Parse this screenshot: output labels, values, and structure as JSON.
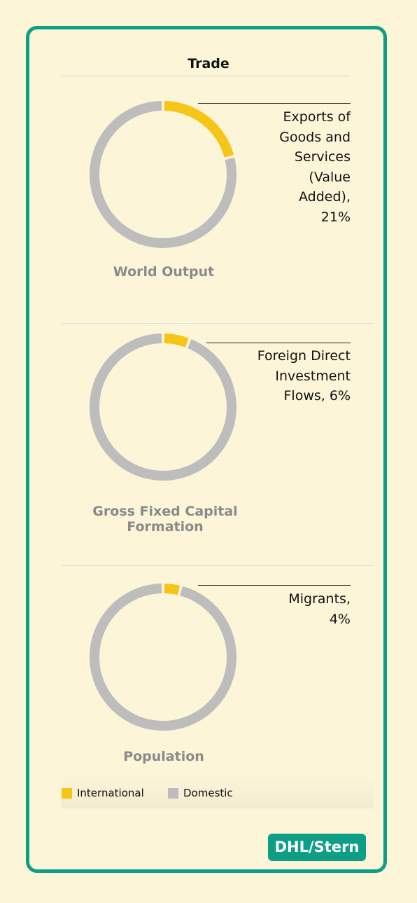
{
  "section_title": "Trade",
  "colors": {
    "international": "#f5c518",
    "domestic": "#bdbdbd",
    "accent": "#0e9e86"
  },
  "chart_data": [
    {
      "type": "pie",
      "title": "World Output",
      "slices": [
        {
          "name": "International",
          "value": 21
        },
        {
          "name": "Domestic",
          "value": 79
        }
      ],
      "annotation": "Exports of Goods and Services (Value Added), 21%"
    },
    {
      "type": "pie",
      "title": "Gross Fixed Capital Formation",
      "slices": [
        {
          "name": "International",
          "value": 6
        },
        {
          "name": "Domestic",
          "value": 94
        }
      ],
      "annotation": "Foreign Direct Investment Flows, 6%"
    },
    {
      "type": "pie",
      "title": "Population",
      "slices": [
        {
          "name": "International",
          "value": 4
        },
        {
          "name": "Domestic",
          "value": 96
        }
      ],
      "annotation": "Migrants, 4%"
    }
  ],
  "annotations": {
    "world_output": [
      "Exports of",
      "Goods and",
      "Services",
      "(Value",
      "Added),",
      "21%"
    ],
    "gfcf": [
      "Foreign Direct",
      "Investment",
      "Flows, 6%"
    ],
    "population": [
      "Migrants,",
      "4%"
    ]
  },
  "legend": {
    "international": "International",
    "domestic": "Domestic"
  },
  "source": "DHL/Stern"
}
